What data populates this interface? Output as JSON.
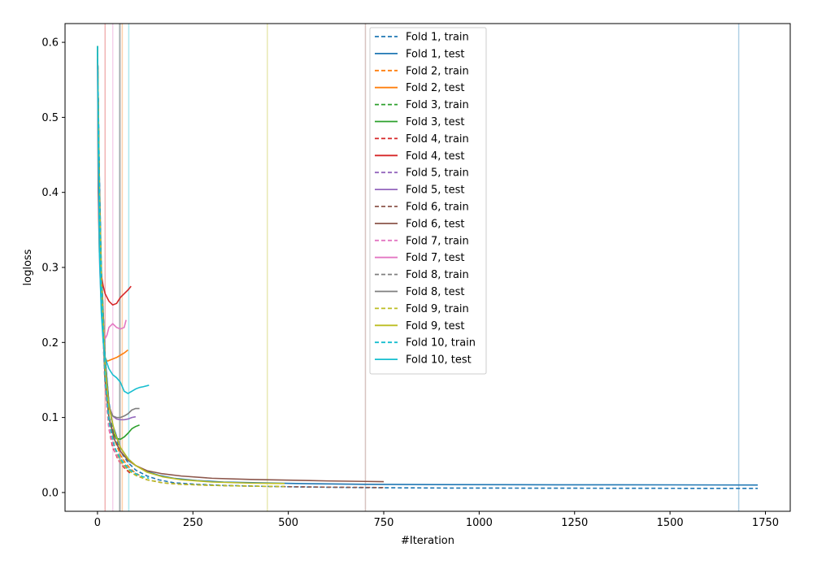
{
  "chart_data": {
    "type": "line",
    "title": "",
    "xlabel": "#Iteration",
    "ylabel": "logloss",
    "xlim": [
      -85,
      1815
    ],
    "ylim": [
      -0.025,
      0.625
    ],
    "x_ticks": [
      0,
      250,
      500,
      750,
      1000,
      1250,
      1500,
      1750
    ],
    "x_tick_labels": [
      "0",
      "250",
      "500",
      "750",
      "1000",
      "1250",
      "1500",
      "1750"
    ],
    "y_ticks": [
      0.0,
      0.1,
      0.2,
      0.3,
      0.4,
      0.5,
      0.6
    ],
    "y_tick_labels": [
      "0.0",
      "0.1",
      "0.2",
      "0.3",
      "0.4",
      "0.5",
      "0.6"
    ],
    "grid": false,
    "legend_position": "top-center",
    "best_iteration_lines": [
      {
        "x": 1680,
        "color": "#1f77b4"
      },
      {
        "x": 65,
        "color": "#ff7f0e"
      },
      {
        "x": 58,
        "color": "#2ca02c"
      },
      {
        "x": 20,
        "color": "#d62728"
      },
      {
        "x": 58,
        "color": "#9467bd"
      },
      {
        "x": 702,
        "color": "#8c564b"
      },
      {
        "x": 40,
        "color": "#e377c2"
      },
      {
        "x": 60,
        "color": "#7f7f7f"
      },
      {
        "x": 445,
        "color": "#bcbd22"
      },
      {
        "x": 82,
        "color": "#17becf"
      }
    ],
    "series": [
      {
        "name": "Fold 1, train",
        "color": "#1f77b4",
        "style": "dashed",
        "x": [
          0,
          5,
          10,
          20,
          30,
          40,
          60,
          80,
          100,
          130,
          160,
          200,
          260,
          330,
          420,
          520,
          700,
          900,
          1200,
          1500,
          1730
        ],
        "y": [
          0.595,
          0.42,
          0.3,
          0.18,
          0.12,
          0.085,
          0.055,
          0.04,
          0.03,
          0.022,
          0.017,
          0.013,
          0.011,
          0.0095,
          0.0085,
          0.0075,
          0.0065,
          0.006,
          0.0058,
          0.0056,
          0.0055
        ]
      },
      {
        "name": "Fold 1, test",
        "color": "#1f77b4",
        "style": "solid",
        "x": [
          0,
          5,
          10,
          20,
          30,
          40,
          60,
          80,
          100,
          130,
          160,
          200,
          260,
          330,
          420,
          520,
          700,
          900,
          1200,
          1500,
          1730
        ],
        "y": [
          0.595,
          0.42,
          0.3,
          0.18,
          0.12,
          0.09,
          0.06,
          0.045,
          0.036,
          0.028,
          0.023,
          0.019,
          0.016,
          0.014,
          0.013,
          0.012,
          0.011,
          0.0105,
          0.0103,
          0.0102,
          0.01
        ]
      },
      {
        "name": "Fold 2, train",
        "color": "#ff7f0e",
        "style": "dashed",
        "x": [
          0,
          5,
          10,
          20,
          30,
          45,
          60,
          75,
          90,
          100,
          110
        ],
        "y": [
          0.595,
          0.4,
          0.28,
          0.16,
          0.1,
          0.07,
          0.05,
          0.038,
          0.03,
          0.026,
          0.023
        ]
      },
      {
        "name": "Fold 2, test",
        "color": "#ff7f0e",
        "style": "solid",
        "x": [
          0,
          5,
          10,
          15,
          20,
          25,
          30,
          40,
          50,
          60,
          70,
          80
        ],
        "y": [
          0.595,
          0.4,
          0.28,
          0.21,
          0.18,
          0.175,
          0.176,
          0.178,
          0.18,
          0.183,
          0.186,
          0.19
        ]
      },
      {
        "name": "Fold 3, train",
        "color": "#2ca02c",
        "style": "dashed",
        "x": [
          0,
          5,
          10,
          20,
          30,
          45,
          60,
          80,
          100
        ],
        "y": [
          0.595,
          0.4,
          0.28,
          0.15,
          0.095,
          0.06,
          0.045,
          0.032,
          0.025
        ]
      },
      {
        "name": "Fold 3, test",
        "color": "#2ca02c",
        "style": "solid",
        "x": [
          0,
          5,
          10,
          20,
          30,
          40,
          50,
          60,
          70,
          80,
          90,
          100,
          110
        ],
        "y": [
          0.595,
          0.4,
          0.28,
          0.15,
          0.1,
          0.08,
          0.072,
          0.071,
          0.074,
          0.079,
          0.085,
          0.088,
          0.09
        ]
      },
      {
        "name": "Fold 4, train",
        "color": "#d62728",
        "style": "dashed",
        "x": [
          0,
          5,
          10,
          20,
          30,
          40,
          55,
          70,
          85
        ],
        "y": [
          0.595,
          0.4,
          0.27,
          0.14,
          0.085,
          0.06,
          0.043,
          0.033,
          0.026
        ]
      },
      {
        "name": "Fold 4, test",
        "color": "#d62728",
        "style": "solid",
        "x": [
          0,
          2,
          5,
          10,
          15,
          20,
          30,
          40,
          50,
          60,
          70,
          80,
          88
        ],
        "y": [
          0.595,
          0.4,
          0.32,
          0.29,
          0.275,
          0.265,
          0.255,
          0.25,
          0.252,
          0.26,
          0.265,
          0.27,
          0.275
        ]
      },
      {
        "name": "Fold 5, train",
        "color": "#9467bd",
        "style": "dashed",
        "x": [
          0,
          5,
          10,
          20,
          30,
          45,
          60,
          80,
          100
        ],
        "y": [
          0.595,
          0.4,
          0.28,
          0.15,
          0.095,
          0.06,
          0.045,
          0.032,
          0.025
        ]
      },
      {
        "name": "Fold 5, test",
        "color": "#9467bd",
        "style": "solid",
        "x": [
          0,
          5,
          10,
          20,
          30,
          40,
          50,
          60,
          70,
          80,
          90,
          100
        ],
        "y": [
          0.595,
          0.4,
          0.28,
          0.16,
          0.115,
          0.102,
          0.098,
          0.097,
          0.097,
          0.098,
          0.1,
          0.101
        ]
      },
      {
        "name": "Fold 6, train",
        "color": "#8c564b",
        "style": "dashed",
        "x": [
          0,
          5,
          10,
          20,
          30,
          45,
          60,
          80,
          100,
          130,
          170,
          220,
          300,
          400,
          500,
          600,
          700,
          750
        ],
        "y": [
          0.595,
          0.4,
          0.28,
          0.15,
          0.095,
          0.06,
          0.042,
          0.03,
          0.023,
          0.017,
          0.013,
          0.011,
          0.0095,
          0.0085,
          0.0078,
          0.0072,
          0.0068,
          0.0066
        ]
      },
      {
        "name": "Fold 6, test",
        "color": "#8c564b",
        "style": "solid",
        "x": [
          0,
          5,
          10,
          20,
          30,
          45,
          60,
          80,
          100,
          130,
          170,
          220,
          300,
          400,
          500,
          600,
          700,
          750
        ],
        "y": [
          0.595,
          0.4,
          0.28,
          0.15,
          0.1,
          0.07,
          0.055,
          0.043,
          0.036,
          0.029,
          0.025,
          0.022,
          0.019,
          0.0175,
          0.0165,
          0.0155,
          0.0148,
          0.0145
        ]
      },
      {
        "name": "Fold 7, train",
        "color": "#e377c2",
        "style": "dashed",
        "x": [
          0,
          5,
          10,
          20,
          30,
          45,
          60,
          75
        ],
        "y": [
          0.595,
          0.4,
          0.27,
          0.14,
          0.085,
          0.055,
          0.04,
          0.032
        ]
      },
      {
        "name": "Fold 7, test",
        "color": "#e377c2",
        "style": "solid",
        "x": [
          0,
          3,
          6,
          10,
          15,
          20,
          25,
          30,
          40,
          50,
          60,
          70,
          75
        ],
        "y": [
          0.595,
          0.4,
          0.3,
          0.25,
          0.22,
          0.205,
          0.21,
          0.22,
          0.225,
          0.22,
          0.218,
          0.22,
          0.23
        ]
      },
      {
        "name": "Fold 8, train",
        "color": "#7f7f7f",
        "style": "dashed",
        "x": [
          0,
          5,
          10,
          20,
          30,
          45,
          60,
          80,
          100,
          110
        ],
        "y": [
          0.595,
          0.4,
          0.28,
          0.15,
          0.095,
          0.06,
          0.045,
          0.032,
          0.025,
          0.023
        ]
      },
      {
        "name": "Fold 8, test",
        "color": "#7f7f7f",
        "style": "solid",
        "x": [
          0,
          5,
          10,
          20,
          30,
          40,
          50,
          60,
          70,
          80,
          90,
          100,
          110
        ],
        "y": [
          0.595,
          0.4,
          0.28,
          0.16,
          0.115,
          0.102,
          0.1,
          0.1,
          0.102,
          0.105,
          0.11,
          0.112,
          0.112
        ]
      },
      {
        "name": "Fold 9, train",
        "color": "#bcbd22",
        "style": "dashed",
        "x": [
          0,
          5,
          10,
          20,
          30,
          45,
          60,
          80,
          100,
          130,
          170,
          220,
          300,
          400,
          490
        ],
        "y": [
          0.595,
          0.4,
          0.28,
          0.15,
          0.095,
          0.06,
          0.042,
          0.03,
          0.023,
          0.017,
          0.013,
          0.011,
          0.0095,
          0.0085,
          0.008
        ]
      },
      {
        "name": "Fold 9, test",
        "color": "#bcbd22",
        "style": "solid",
        "x": [
          0,
          5,
          10,
          20,
          30,
          45,
          60,
          80,
          100,
          130,
          170,
          220,
          300,
          400,
          490
        ],
        "y": [
          0.595,
          0.4,
          0.29,
          0.17,
          0.115,
          0.08,
          0.06,
          0.045,
          0.036,
          0.027,
          0.021,
          0.017,
          0.014,
          0.0125,
          0.012
        ]
      },
      {
        "name": "Fold 10, train",
        "color": "#17becf",
        "style": "dashed",
        "x": [
          0,
          5,
          10,
          20,
          30,
          45,
          60,
          80,
          100,
          120,
          135
        ],
        "y": [
          0.595,
          0.4,
          0.28,
          0.15,
          0.095,
          0.06,
          0.045,
          0.032,
          0.025,
          0.021,
          0.019
        ]
      },
      {
        "name": "Fold 10, test",
        "color": "#17becf",
        "style": "solid",
        "x": [
          0,
          2,
          5,
          10,
          15,
          20,
          30,
          40,
          50,
          60,
          70,
          80,
          90,
          100,
          110,
          120,
          135
        ],
        "y": [
          0.595,
          0.45,
          0.32,
          0.24,
          0.2,
          0.18,
          0.165,
          0.157,
          0.153,
          0.147,
          0.135,
          0.132,
          0.135,
          0.138,
          0.14,
          0.141,
          0.143
        ]
      }
    ]
  }
}
